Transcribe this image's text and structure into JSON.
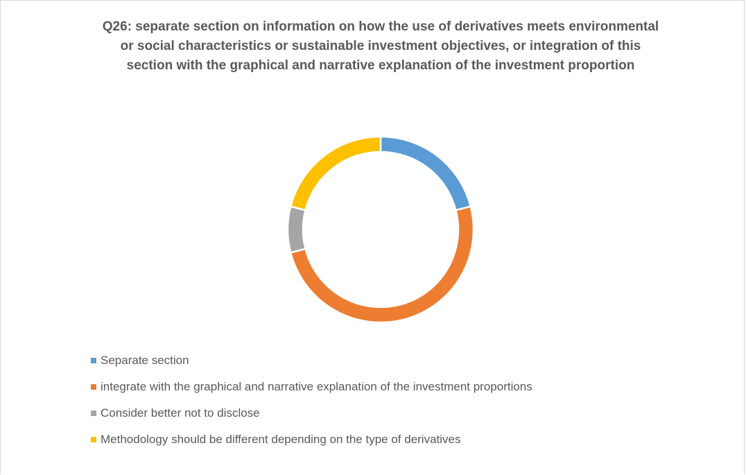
{
  "chart_data": {
    "type": "donut",
    "title": "Q26: separate section on information on how the use of derivatives meets environmental or social characteristics or sustainable investment objectives, or integration of this section with the graphical and narrative explanation of the investment proportion",
    "categories": [
      "Separate section",
      "integrate with the graphical and narrative explanation of the investment proportions",
      "Consider better not to disclose",
      "Methodology should be different depending on the type of derivatives"
    ],
    "values": [
      21,
      50,
      8,
      21
    ],
    "colors": [
      "#5b9bd5",
      "#ed7d31",
      "#a5a5a5",
      "#ffc000"
    ],
    "legend": "bottom"
  }
}
